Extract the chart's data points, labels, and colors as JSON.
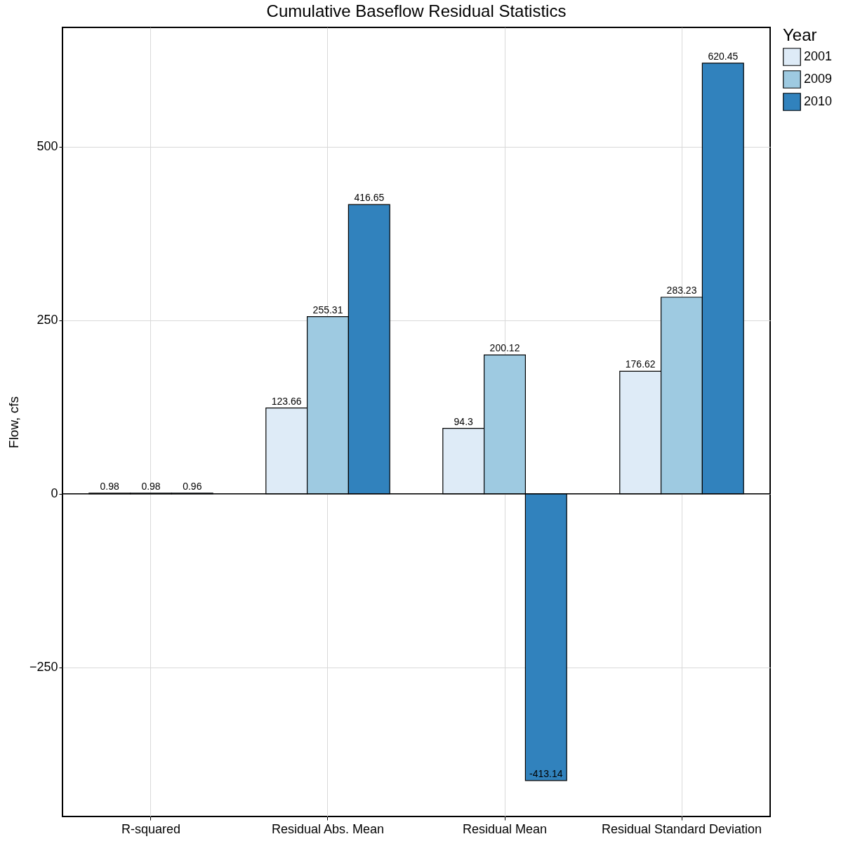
{
  "chart_data": {
    "type": "bar",
    "title": "Cumulative Baseflow Residual Statistics",
    "ylabel": "Flow, cfs",
    "legend_title": "Year",
    "categories": [
      "R-squared",
      "Residual Abs. Mean",
      "Residual Mean",
      "Residual Standard Deviation"
    ],
    "series": [
      {
        "name": "2001",
        "color": "#deebf7",
        "values": [
          0.98,
          123.66,
          94.3,
          176.62
        ]
      },
      {
        "name": "2009",
        "color": "#9ecae1",
        "values": [
          0.98,
          255.31,
          200.12,
          283.23
        ]
      },
      {
        "name": "2010",
        "color": "#3182bd",
        "values": [
          0.96,
          416.65,
          -413.14,
          620.45
        ]
      }
    ],
    "ylim": [
      -465,
      672
    ],
    "yticks": [
      -250,
      0,
      250,
      500
    ],
    "grid": true,
    "legend": "right",
    "data_labels": true,
    "ref_lines": [
      {
        "axis": "y",
        "value": 0,
        "color": "#000000"
      }
    ]
  }
}
